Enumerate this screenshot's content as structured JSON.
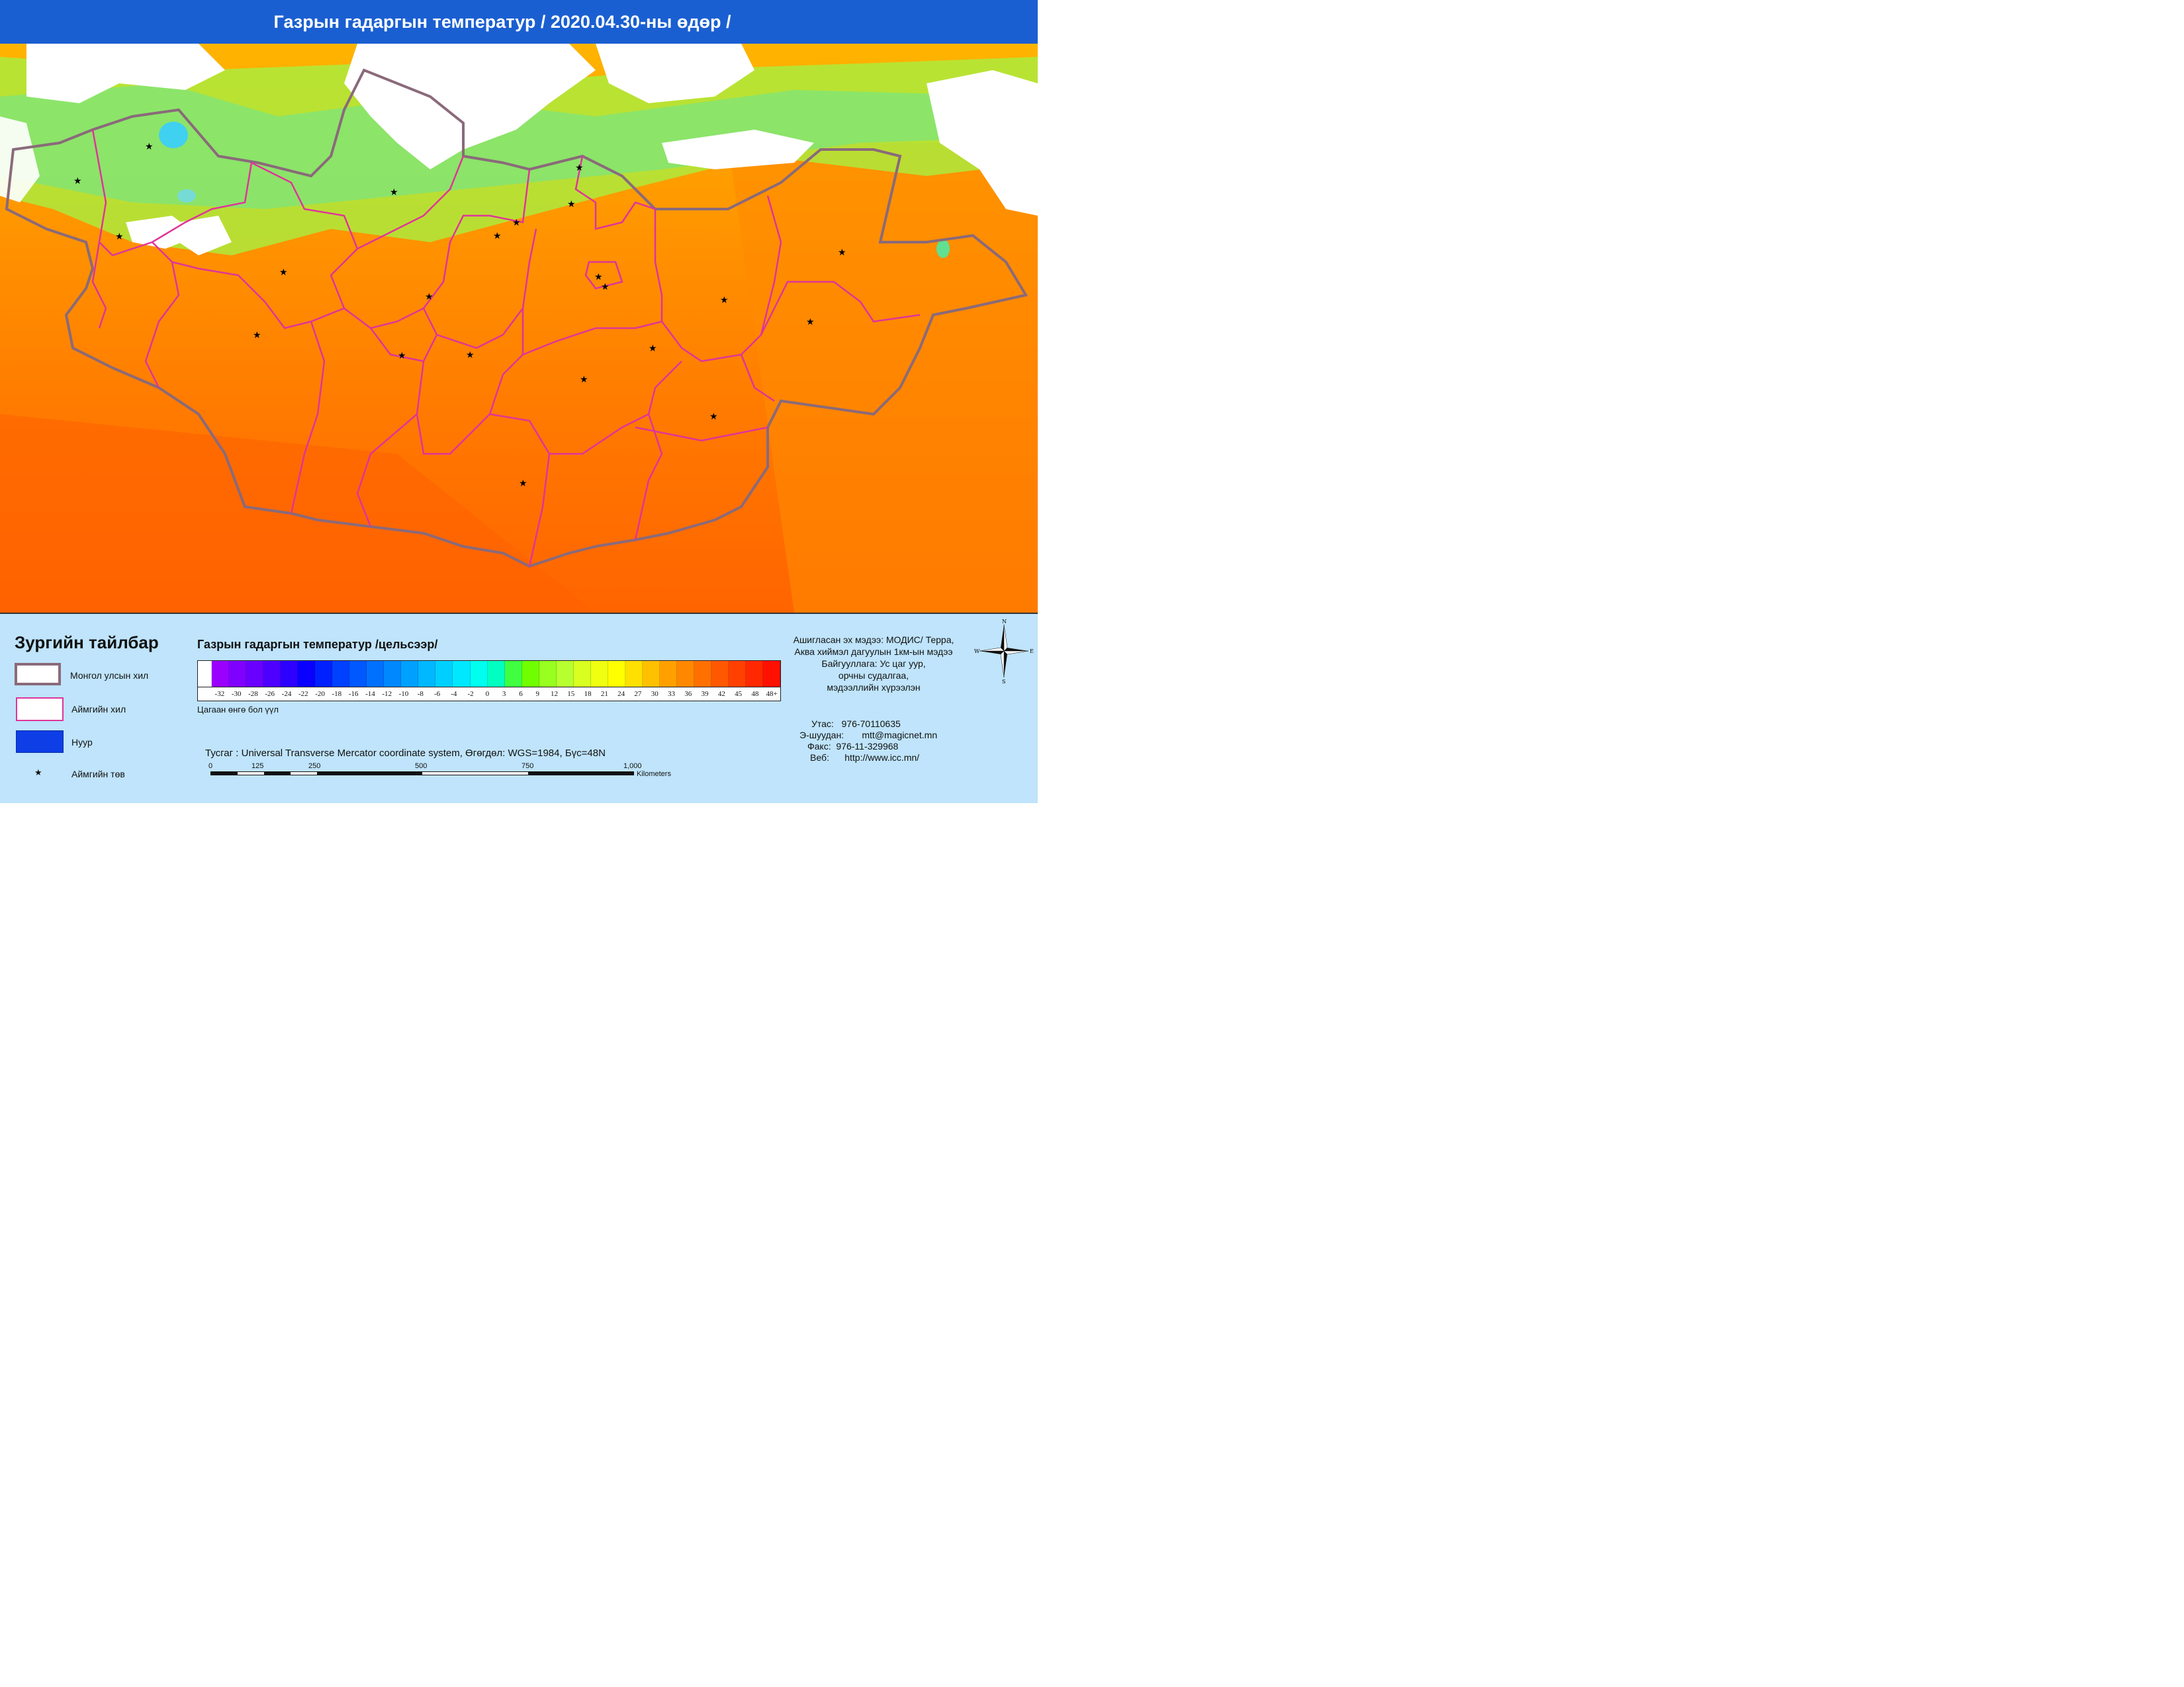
{
  "header": {
    "title": "Газрын гадаргын температур / 2020.04.30-ны өдөр /"
  },
  "legend": {
    "heading": "Зургийн тайлбар",
    "items": [
      {
        "label": "Монгол улсын хил",
        "color": "#8a6a7a"
      },
      {
        "label": "Аймгийн хил",
        "color": "#e0349a"
      },
      {
        "label": "Нуур",
        "color": "#0d3ee6"
      },
      {
        "label": "Аймгийн төв",
        "symbol": "★"
      }
    ]
  },
  "colorbar": {
    "title": "Газрын гадаргын температур /цельсээр/",
    "ticks": [
      "-32",
      "-30",
      "-28",
      "-26",
      "-24",
      "-22",
      "-20",
      "-18",
      "-16",
      "-14",
      "-12",
      "-10",
      "-8",
      "-6",
      "-4",
      "-2",
      "0",
      "3",
      "6",
      "9",
      "12",
      "15",
      "18",
      "21",
      "24",
      "27",
      "30",
      "33",
      "36",
      "39",
      "42",
      "45",
      "48",
      "48+"
    ],
    "colors": [
      "#ffffff",
      "#9a00ff",
      "#8000ff",
      "#6a00ff",
      "#4d00ff",
      "#2d00ff",
      "#0a00ff",
      "#0020ff",
      "#0040ff",
      "#0058ff",
      "#0070ff",
      "#0088ff",
      "#00a0ff",
      "#00b8ff",
      "#00d0ff",
      "#00e8ff",
      "#00ffee",
      "#00ffc0",
      "#40ff40",
      "#70ff00",
      "#98ff20",
      "#b8ff30",
      "#d8ff20",
      "#f0ff10",
      "#ffff00",
      "#ffe000",
      "#ffc000",
      "#ffa000",
      "#ff8800",
      "#ff7000",
      "#ff5800",
      "#ff4000",
      "#ff2800",
      "#ff1000"
    ],
    "note": "Цагаан өнгө бол үүл"
  },
  "projection": {
    "text": "Тусгаг : Universal Transverse Mercator coordinate system, Өгөгдөл: WGS=1984, Бүс=48N"
  },
  "scale_bar": {
    "labels": [
      "0",
      "125",
      "250",
      "500",
      "750",
      "1,000"
    ],
    "unit": "Kilometers"
  },
  "source_info": {
    "lines": [
      "Ашигласан эх мэдээ: МОДИС/ Терра,",
      "Аква хиймэл дагуулын 1км-ын мэдээ",
      "Байгууллага: Ус цаг уур,",
      "орчны судалгаа,",
      "мэдээллийн хүрээлэн"
    ]
  },
  "contact": {
    "phone_label": "Утас:",
    "phone": "976-70110635",
    "email_label": "Э-шуудан:",
    "email": "mtt@magicnet.mn",
    "fax_label": "Факс:",
    "fax": "976-11-329968",
    "web_label": "Веб:",
    "web": "http://www.icc.mn/"
  },
  "compass": {
    "n": "N",
    "e": "E",
    "s": "S",
    "w": "W"
  },
  "map_colors": {
    "cloud": "#ffffff",
    "hot": "#ff6a00",
    "warm": "#ff9000",
    "mild": "#ffb800",
    "cool": "#a8ff30",
    "country_border": "#8a6a7a",
    "province_border": "#e0349a",
    "lake": "#40d0f0"
  }
}
